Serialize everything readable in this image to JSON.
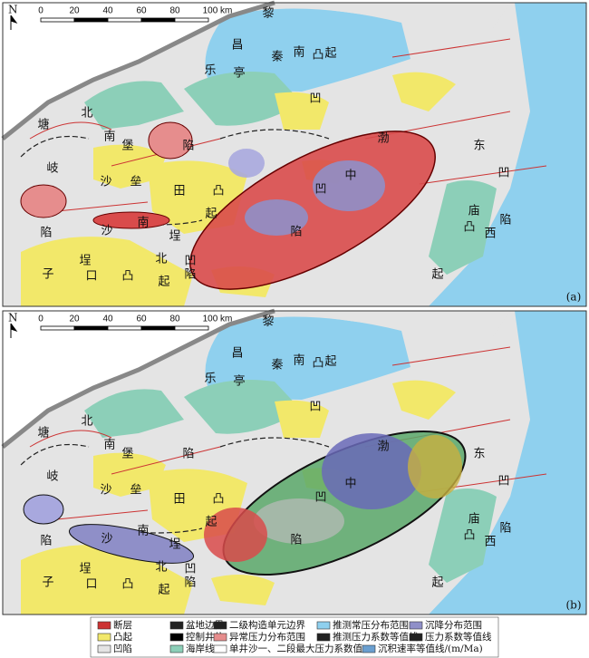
{
  "panels": [
    {
      "tag": "(a)",
      "north": "N",
      "scale": [
        "0",
        "20",
        "40",
        "60",
        "80",
        "100 km"
      ],
      "labels": [
        "黎",
        "昌",
        "乐",
        "亭",
        "秦",
        "南",
        "凸",
        "起",
        "凹",
        "北",
        "塘",
        "南",
        "堡",
        "陷",
        "岐",
        "沙",
        "垒",
        "田",
        "凸",
        "起",
        "陷",
        "沙",
        "南",
        "埕",
        "子",
        "口",
        "凸",
        "起",
        "埕",
        "北",
        "凹",
        "陷",
        "中",
        "凹",
        "陷",
        "渤",
        "东",
        "凹",
        "陷",
        "庙",
        "西",
        "凸",
        "起"
      ]
    },
    {
      "tag": "(b)",
      "north": "N",
      "scale": [
        "0",
        "20",
        "40",
        "60",
        "80",
        "100 km"
      ],
      "labels": [
        "黎",
        "昌",
        "乐",
        "亭",
        "秦",
        "南",
        "凸",
        "起",
        "凹",
        "北",
        "塘",
        "南",
        "堡",
        "陷",
        "岐",
        "沙",
        "垒",
        "田",
        "凸",
        "起",
        "陷",
        "沙",
        "南",
        "埕",
        "子",
        "口",
        "凸",
        "起",
        "埕",
        "北",
        "凹",
        "陷",
        "中",
        "凹",
        "陷",
        "渤",
        "东",
        "凹",
        "陷",
        "庙",
        "西",
        "凸",
        "起"
      ]
    }
  ],
  "legend": [
    "断层",
    "盆地边界",
    "二级构造单元边界",
    "推测常压分布范围",
    "沉降分布范围",
    "凸起",
    "控制井位",
    "异常压力分布范围",
    "推测压力系数等值线",
    "压力系数等值线",
    "凹陷",
    "海岸线",
    "单井沙一、二段最大压力系数值",
    "沉积速率等值线/(m/Ma)"
  ]
}
